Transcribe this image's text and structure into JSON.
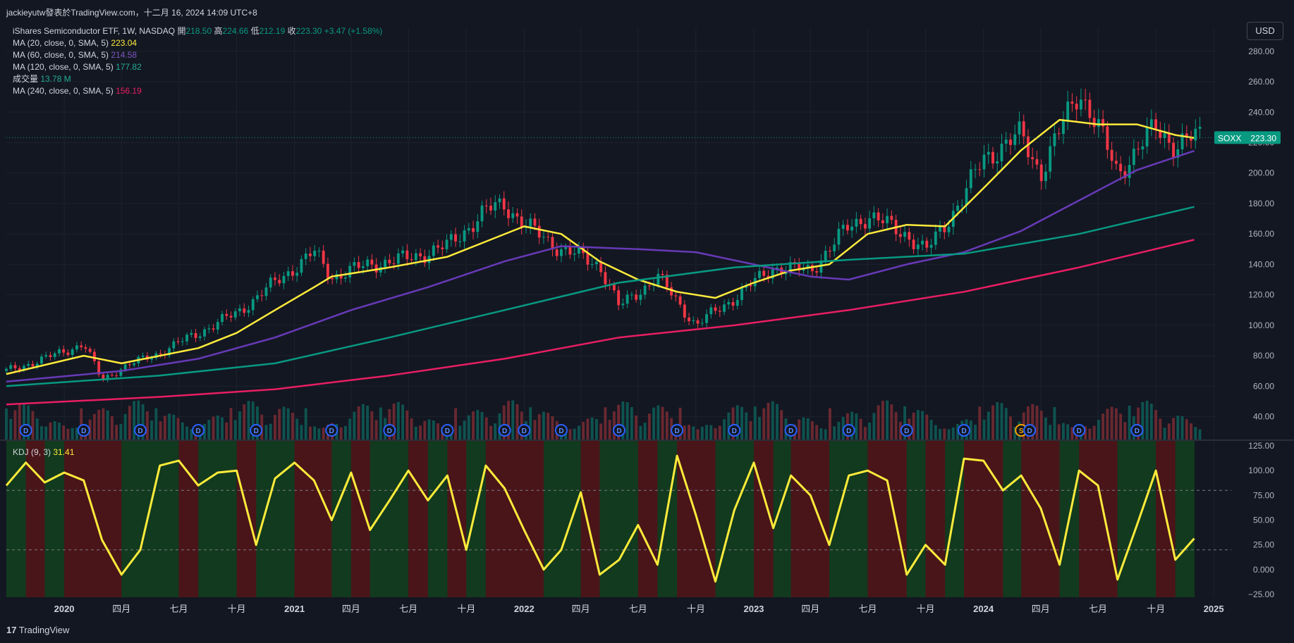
{
  "header": {
    "publisher": "jackieyutw發表於TradingView.com，十二月 16, 2024 14:09 UTC+8"
  },
  "symbol_line": {
    "name": "iShares Semiconductor ETF, 1W, NASDAQ",
    "open_label": "開",
    "open": "218.50",
    "high_label": "高",
    "high": "224.66",
    "low_label": "低",
    "low": "212.19",
    "close_label": "收",
    "close": "223.30",
    "change": "+3.47 (+1.58%)"
  },
  "indicators": [
    {
      "label": "MA (20, close, 0, SMA, 5)",
      "value": "223.04",
      "color": "#ffeb3b"
    },
    {
      "label": "MA (60, close, 0, SMA, 5)",
      "value": "214.58",
      "color": "#673ab7"
    },
    {
      "label": "MA (120, close, 0, SMA, 5)",
      "value": "177.82",
      "color": "#089981"
    },
    {
      "label": "成交量",
      "value": "13.78 M",
      "color": "#22ab94"
    },
    {
      "label": "MA (240, close, 0, SMA, 5)",
      "value": "156.19",
      "color": "#e91e63"
    }
  ],
  "currency_button": "USD",
  "price_tag": {
    "symbol": "SOXX",
    "value": "223.30"
  },
  "kdj": {
    "label": "KDJ (9, 3)",
    "value": "31.41"
  },
  "footer": {
    "logo_text": "TradingView"
  },
  "colors": {
    "bg": "#131722",
    "up": "#089981",
    "down": "#f23645",
    "grid": "#1e222d",
    "text": "#d1d4dc"
  },
  "chart_data": {
    "type": "candlestick",
    "price_axis": {
      "ticks": [
        40,
        60,
        80,
        100,
        120,
        140,
        160,
        180,
        200,
        220,
        240,
        260,
        280
      ]
    },
    "kdj_axis": {
      "ticks": [
        125.0,
        100.0,
        75.0,
        50.0,
        25.0,
        0.0,
        -25.0
      ],
      "tick_labels": [
        "125.00",
        "100.00",
        "75.00",
        "50.00",
        "25.00",
        "0.000",
        "−25.00"
      ],
      "dashed_levels": [
        80,
        20
      ]
    },
    "x_labels": [
      "2020",
      "四月",
      "七月",
      "十月",
      "2021",
      "四月",
      "七月",
      "十月",
      "2022",
      "四月",
      "七月",
      "十月",
      "2023",
      "四月",
      "七月",
      "十月",
      "2024",
      "四月",
      "七月",
      "十月",
      "2025"
    ],
    "close_path": [
      [
        "2019-10",
        70
      ],
      [
        "2019-12",
        78
      ],
      [
        "2020-02",
        88
      ],
      [
        "2020-03",
        64
      ],
      [
        "2020-04",
        72
      ],
      [
        "2020-06",
        82
      ],
      [
        "2020-08",
        95
      ],
      [
        "2020-10",
        108
      ],
      [
        "2020-12",
        128
      ],
      [
        "2021-02",
        148
      ],
      [
        "2021-03",
        132
      ],
      [
        "2021-05",
        140
      ],
      [
        "2021-07",
        144
      ],
      [
        "2021-09",
        152
      ],
      [
        "2021-11",
        175
      ],
      [
        "2021-12",
        180
      ],
      [
        "2022-01",
        166
      ],
      [
        "2022-03",
        150
      ],
      [
        "2022-05",
        140
      ],
      [
        "2022-06",
        112
      ],
      [
        "2022-08",
        132
      ],
      [
        "2022-10",
        100
      ],
      [
        "2022-12",
        118
      ],
      [
        "2023-02",
        138
      ],
      [
        "2023-04",
        136
      ],
      [
        "2023-06",
        165
      ],
      [
        "2023-07",
        172
      ],
      [
        "2023-09",
        160
      ],
      [
        "2023-10",
        148
      ],
      [
        "2023-12",
        185
      ],
      [
        "2024-01",
        210
      ],
      [
        "2024-03",
        225
      ],
      [
        "2024-04",
        200
      ],
      [
        "2024-06",
        255
      ],
      [
        "2024-07",
        230
      ],
      [
        "2024-08",
        200
      ],
      [
        "2024-10",
        230
      ],
      [
        "2024-11",
        218
      ],
      [
        "2024-12",
        223.3
      ]
    ],
    "series": [
      {
        "name": "MA (20, close, 0, SMA, 5)",
        "color": "#ffeb3b",
        "points": [
          [
            "2019-10",
            68
          ],
          [
            "2020-02",
            80
          ],
          [
            "2020-04",
            75
          ],
          [
            "2020-08",
            85
          ],
          [
            "2020-10",
            95
          ],
          [
            "2020-12",
            110
          ],
          [
            "2021-02",
            125
          ],
          [
            "2021-03",
            132
          ],
          [
            "2021-06",
            138
          ],
          [
            "2021-09",
            145
          ],
          [
            "2021-11",
            155
          ],
          [
            "2022-01",
            165
          ],
          [
            "2022-03",
            160
          ],
          [
            "2022-05",
            142
          ],
          [
            "2022-07",
            130
          ],
          [
            "2022-09",
            122
          ],
          [
            "2022-11",
            118
          ],
          [
            "2023-01",
            128
          ],
          [
            "2023-03",
            136
          ],
          [
            "2023-05",
            140
          ],
          [
            "2023-07",
            160
          ],
          [
            "2023-09",
            166
          ],
          [
            "2023-11",
            165
          ],
          [
            "2024-01",
            190
          ],
          [
            "2024-03",
            215
          ],
          [
            "2024-05",
            235
          ],
          [
            "2024-07",
            232
          ],
          [
            "2024-09",
            232
          ],
          [
            "2024-11",
            225
          ],
          [
            "2024-12",
            223.04
          ]
        ]
      },
      {
        "name": "MA (60, close, 0, SMA, 5)",
        "color": "#673ab7",
        "points": [
          [
            "2019-10",
            63
          ],
          [
            "2020-04",
            70
          ],
          [
            "2020-08",
            78
          ],
          [
            "2020-12",
            92
          ],
          [
            "2021-04",
            110
          ],
          [
            "2021-08",
            125
          ],
          [
            "2021-12",
            142
          ],
          [
            "2022-03",
            152
          ],
          [
            "2022-07",
            150
          ],
          [
            "2022-10",
            148
          ],
          [
            "2023-01",
            140
          ],
          [
            "2023-04",
            132
          ],
          [
            "2023-06",
            130
          ],
          [
            "2023-09",
            140
          ],
          [
            "2023-12",
            148
          ],
          [
            "2024-03",
            162
          ],
          [
            "2024-06",
            182
          ],
          [
            "2024-09",
            202
          ],
          [
            "2024-12",
            214.58
          ]
        ]
      },
      {
        "name": "MA (120, close, 0, SMA, 5)",
        "color": "#089981",
        "points": [
          [
            "2019-10",
            60
          ],
          [
            "2020-06",
            67
          ],
          [
            "2020-12",
            75
          ],
          [
            "2021-06",
            92
          ],
          [
            "2021-12",
            110
          ],
          [
            "2022-06",
            128
          ],
          [
            "2022-12",
            138
          ],
          [
            "2023-06",
            143
          ],
          [
            "2023-12",
            147
          ],
          [
            "2024-06",
            160
          ],
          [
            "2024-12",
            177.82
          ]
        ]
      },
      {
        "name": "MA (240, close, 0, SMA, 5)",
        "color": "#e91e63",
        "points": [
          [
            "2019-10",
            48
          ],
          [
            "2020-06",
            53
          ],
          [
            "2020-12",
            58
          ],
          [
            "2021-06",
            67
          ],
          [
            "2021-12",
            78
          ],
          [
            "2022-06",
            92
          ],
          [
            "2022-12",
            100
          ],
          [
            "2023-06",
            110
          ],
          [
            "2023-12",
            122
          ],
          [
            "2024-06",
            138
          ],
          [
            "2024-12",
            156.19
          ]
        ]
      }
    ],
    "kdj_points": [
      [
        "2019-10",
        85
      ],
      [
        "2019-11",
        108
      ],
      [
        "2019-12",
        88
      ],
      [
        "2020-01",
        98
      ],
      [
        "2020-02",
        90
      ],
      [
        "2020-03",
        30
      ],
      [
        "2020-04",
        -5
      ],
      [
        "2020-05",
        20
      ],
      [
        "2020-06",
        105
      ],
      [
        "2020-07",
        110
      ],
      [
        "2020-08",
        85
      ],
      [
        "2020-09",
        98
      ],
      [
        "2020-10",
        100
      ],
      [
        "2020-11",
        25
      ],
      [
        "2020-12",
        92
      ],
      [
        "2021-01",
        108
      ],
      [
        "2021-02",
        90
      ],
      [
        "2021-03",
        50
      ],
      [
        "2021-04",
        98
      ],
      [
        "2021-05",
        40
      ],
      [
        "2021-06",
        70
      ],
      [
        "2021-07",
        100
      ],
      [
        "2021-08",
        70
      ],
      [
        "2021-09",
        95
      ],
      [
        "2021-10",
        20
      ],
      [
        "2021-11",
        105
      ],
      [
        "2021-12",
        82
      ],
      [
        "2022-01",
        40
      ],
      [
        "2022-02",
        0
      ],
      [
        "2022-03",
        20
      ],
      [
        "2022-04",
        78
      ],
      [
        "2022-05",
        -5
      ],
      [
        "2022-06",
        10
      ],
      [
        "2022-07",
        45
      ],
      [
        "2022-08",
        5
      ],
      [
        "2022-09",
        115
      ],
      [
        "2022-10",
        55
      ],
      [
        "2022-11",
        -12
      ],
      [
        "2022-12",
        60
      ],
      [
        "2023-01",
        108
      ],
      [
        "2023-02",
        42
      ],
      [
        "2023-03",
        95
      ],
      [
        "2023-04",
        75
      ],
      [
        "2023-05",
        25
      ],
      [
        "2023-06",
        95
      ],
      [
        "2023-07",
        100
      ],
      [
        "2023-08",
        90
      ],
      [
        "2023-09",
        -5
      ],
      [
        "2023-10",
        25
      ],
      [
        "2023-11",
        5
      ],
      [
        "2023-12",
        112
      ],
      [
        "2024-01",
        110
      ],
      [
        "2024-02",
        80
      ],
      [
        "2024-03",
        95
      ],
      [
        "2024-04",
        62
      ],
      [
        "2024-05",
        5
      ],
      [
        "2024-06",
        100
      ],
      [
        "2024-07",
        85
      ],
      [
        "2024-08",
        -10
      ],
      [
        "2024-09",
        45
      ],
      [
        "2024-10",
        100
      ],
      [
        "2024-11",
        10
      ],
      [
        "2024-12",
        31.41
      ]
    ],
    "signals": [
      {
        "label": "D",
        "date": "2019-11"
      },
      {
        "label": "D",
        "date": "2020-02"
      },
      {
        "label": "D",
        "date": "2020-05"
      },
      {
        "label": "D",
        "date": "2020-08"
      },
      {
        "label": "D",
        "date": "2020-11"
      },
      {
        "label": "D",
        "date": "2021-03"
      },
      {
        "label": "D",
        "date": "2021-06"
      },
      {
        "label": "D",
        "date": "2021-09"
      },
      {
        "label": "D",
        "date": "2021-12"
      },
      {
        "label": "D",
        "date": "2022-01"
      },
      {
        "label": "D",
        "date": "2022-03"
      },
      {
        "label": "D",
        "date": "2022-06"
      },
      {
        "label": "D",
        "date": "2022-09"
      },
      {
        "label": "D",
        "date": "2022-12"
      },
      {
        "label": "D",
        "date": "2023-03"
      },
      {
        "label": "D",
        "date": "2023-06"
      },
      {
        "label": "D",
        "date": "2023-09"
      },
      {
        "label": "D",
        "date": "2023-12"
      },
      {
        "label": "S",
        "date": "2024-03"
      },
      {
        "label": "D",
        "date": "2024-03"
      },
      {
        "label": "D",
        "date": "2024-06"
      },
      {
        "label": "D",
        "date": "2024-09"
      }
    ]
  }
}
